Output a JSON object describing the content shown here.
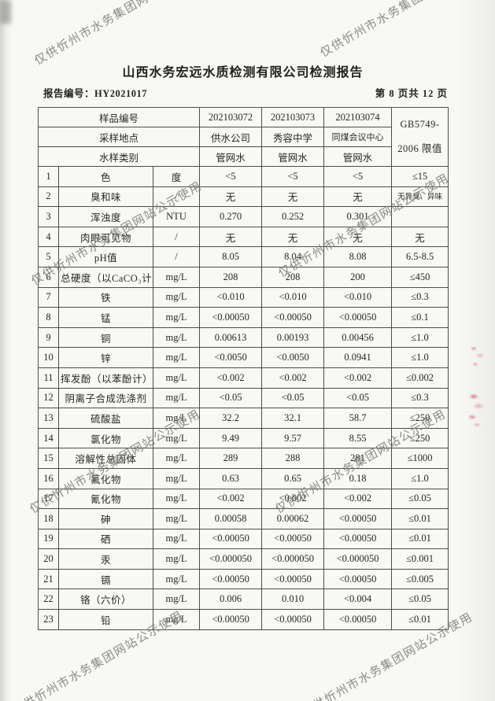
{
  "page": {
    "title": "山西水务宏远水质检测有限公司检测报告",
    "report_no": "报告编号：HY2021017",
    "page_indicator": "第 8 页共 12 页"
  },
  "watermark": {
    "text": "仅供忻州市水务集团网站公示使用"
  },
  "table": {
    "header": {
      "rows": [
        {
          "label": "样品编号",
          "values": [
            "202103072",
            "202103073",
            "202103074"
          ]
        },
        {
          "label": "采样地点",
          "values": [
            "供水公司",
            "秀容中学",
            "同煤会议中心"
          ]
        },
        {
          "label": "水样类别",
          "values": [
            "管网水",
            "管网水",
            "管网水"
          ]
        }
      ],
      "limit_line1": "GB5749-",
      "limit_line2": "2006 限值"
    },
    "rows": [
      {
        "no": "1",
        "item": "色",
        "unit": "度",
        "v1": "<5",
        "v2": "<5",
        "v3": "<5",
        "limit": "≤15"
      },
      {
        "no": "2",
        "item": "臭和味",
        "unit": "/",
        "v1": "无",
        "v2": "无",
        "v3": "无",
        "limit": "无异臭、异味"
      },
      {
        "no": "3",
        "item": "浑浊度",
        "unit": "NTU",
        "v1": "0.270",
        "v2": "0.252",
        "v3": "0.301",
        "limit": ""
      },
      {
        "no": "4",
        "item": "肉眼可见物",
        "unit": "/",
        "v1": "无",
        "v2": "无",
        "v3": "无",
        "limit": "无"
      },
      {
        "no": "5",
        "item": "pH值",
        "unit": "/",
        "v1": "8.05",
        "v2": "8.04",
        "v3": "8.08",
        "limit": "6.5-8.5"
      },
      {
        "no": "6",
        "item": "总硬度（以CaCO₃计）",
        "unit": "mg/L",
        "v1": "208",
        "v2": "208",
        "v3": "200",
        "limit": "≤450"
      },
      {
        "no": "7",
        "item": "铁",
        "unit": "mg/L",
        "v1": "<0.010",
        "v2": "<0.010",
        "v3": "<0.010",
        "limit": "≤0.3"
      },
      {
        "no": "8",
        "item": "锰",
        "unit": "mg/L",
        "v1": "<0.00050",
        "v2": "<0.00050",
        "v3": "<0.00050",
        "limit": "≤0.1"
      },
      {
        "no": "9",
        "item": "铜",
        "unit": "mg/L",
        "v1": "0.00613",
        "v2": "0.00193",
        "v3": "0.00456",
        "limit": "≤1.0"
      },
      {
        "no": "10",
        "item": "锌",
        "unit": "mg/L",
        "v1": "<0.0050",
        "v2": "<0.0050",
        "v3": "0.0941",
        "limit": "≤1.0"
      },
      {
        "no": "11",
        "item": "挥发酚（以苯酚计）",
        "unit": "mg/L",
        "v1": "<0.002",
        "v2": "<0.002",
        "v3": "<0.002",
        "limit": "≤0.002"
      },
      {
        "no": "12",
        "item": "阴离子合成洗涤剂",
        "unit": "mg/L",
        "v1": "<0.05",
        "v2": "<0.05",
        "v3": "<0.05",
        "limit": "≤0.3"
      },
      {
        "no": "13",
        "item": "硫酸盐",
        "unit": "mg/L",
        "v1": "32.2",
        "v2": "32.1",
        "v3": "58.7",
        "limit": "≤250"
      },
      {
        "no": "14",
        "item": "氯化物",
        "unit": "mg/L",
        "v1": "9.49",
        "v2": "9.57",
        "v3": "8.55",
        "limit": "≤250"
      },
      {
        "no": "15",
        "item": "溶解性总固体",
        "unit": "mg/L",
        "v1": "289",
        "v2": "288",
        "v3": "281",
        "limit": "≤1000"
      },
      {
        "no": "16",
        "item": "氟化物",
        "unit": "mg/L",
        "v1": "0.63",
        "v2": "0.65",
        "v3": "0.18",
        "limit": "≤1.0"
      },
      {
        "no": "17",
        "item": "氰化物",
        "unit": "mg/L",
        "v1": "<0.002",
        "v2": "<0.002",
        "v3": "<0.002",
        "limit": "≤0.05"
      },
      {
        "no": "18",
        "item": "砷",
        "unit": "mg/L",
        "v1": "0.00058",
        "v2": "0.00062",
        "v3": "<0.00050",
        "limit": "≤0.01"
      },
      {
        "no": "19",
        "item": "硒",
        "unit": "mg/L",
        "v1": "<0.00050",
        "v2": "<0.00050",
        "v3": "<0.00050",
        "limit": "≤0.01"
      },
      {
        "no": "20",
        "item": "汞",
        "unit": "mg/L",
        "v1": "<0.000050",
        "v2": "<0.000050",
        "v3": "<0.000050",
        "limit": "≤0.001"
      },
      {
        "no": "21",
        "item": "镉",
        "unit": "mg/L",
        "v1": "<0.00050",
        "v2": "<0.00050",
        "v3": "<0.00050",
        "limit": "≤0.005"
      },
      {
        "no": "22",
        "item": "铬（六价）",
        "unit": "mg/L",
        "v1": "0.006",
        "v2": "0.010",
        "v3": "<0.004",
        "limit": "≤0.05"
      },
      {
        "no": "23",
        "item": "铅",
        "unit": "mg/L",
        "v1": "<0.00050",
        "v2": "<0.00050",
        "v3": "<0.00050",
        "limit": "≤0.01"
      }
    ]
  }
}
